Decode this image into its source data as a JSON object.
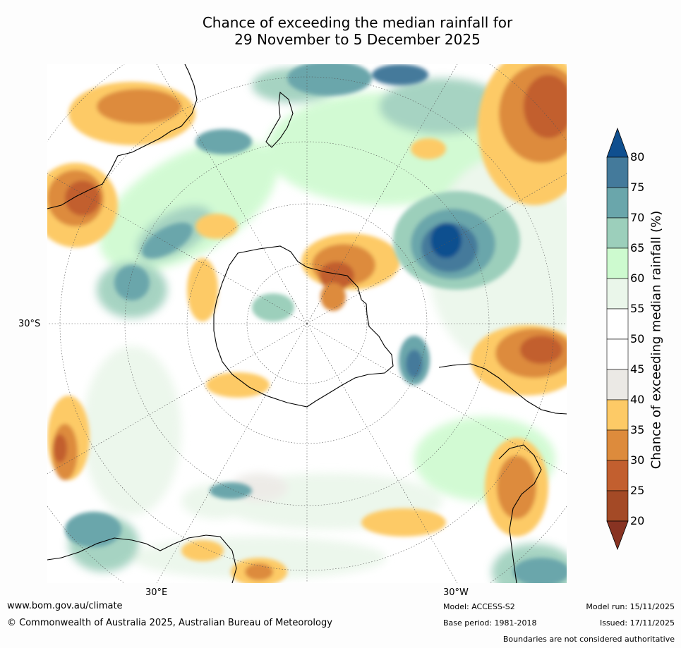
{
  "title": {
    "line1": "Chance of exceeding the median rainfall for",
    "line2": "29 November to 5 December 2025"
  },
  "map": {
    "graticule_labels": {
      "left": "30°S",
      "bottom_left": "30°E",
      "bottom_right": "30°W"
    },
    "projection": "south-polar stereographic",
    "regions": [
      "Australia",
      "New Zealand",
      "Antarctica",
      "South America",
      "Africa"
    ]
  },
  "legend": {
    "title": "Chance of exceeding median rainfall (%)",
    "ticks": [
      "80",
      "75",
      "70",
      "65",
      "60",
      "55",
      "50",
      "45",
      "40",
      "35",
      "30",
      "25",
      "20"
    ],
    "colors": [
      "#0f4f8f",
      "#447a9b",
      "#6aa6ab",
      "#9ccfbb",
      "#cdfacf",
      "#eaf6ea",
      "#ffffff",
      "#ffffff",
      "#ebe9e5",
      "#fdca66",
      "#dd8b3c",
      "#c25f2f",
      "#a44a26",
      "#883322"
    ]
  },
  "footer": {
    "website": "www.bom.gov.au/climate",
    "copyright": "© Commonwealth of Australia 2025, Australian Bureau of Meteorology",
    "model": "Model: ACCESS-S2",
    "base_period": "Base period: 1981-2018",
    "model_run": "Model run: 15/11/2025",
    "issued": "Issued: 17/11/2025",
    "disclaimer": "Boundaries are not considered authoritative"
  }
}
